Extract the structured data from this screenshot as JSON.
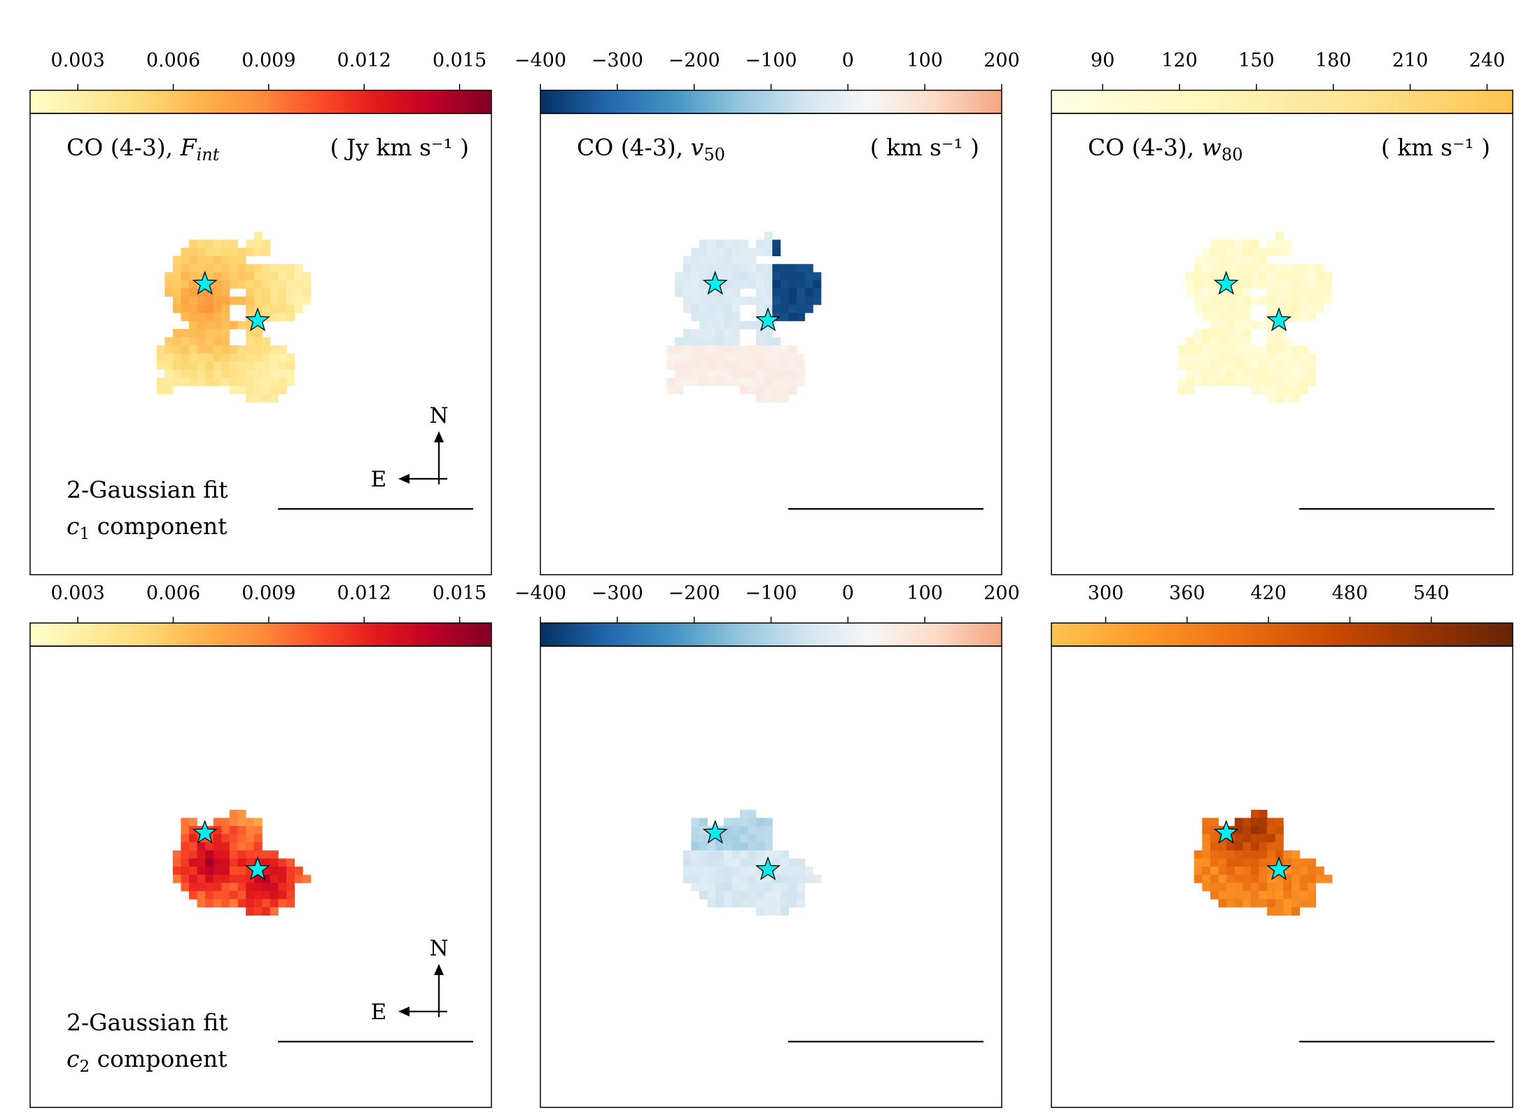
{
  "colors": {
    "YlOrRd": [
      "#ffffcc",
      "#ffeda0",
      "#fed976",
      "#feb24c",
      "#fd8d3c",
      "#fc4e2a",
      "#e31a1c",
      "#bd0026",
      "#800026"
    ],
    "RdBu_r_lower": [
      "#053061",
      "#2166ac",
      "#4393c3",
      "#92c5de",
      "#d1e5f0",
      "#f7f7f7",
      "#fddbc7",
      "#f4a582"
    ],
    "YlOrBr_light": [
      "#ffffe5",
      "#fff7bc",
      "#fee391",
      "#fec44f"
    ],
    "YlOrBr_dark": [
      "#fec44f",
      "#fe9929",
      "#ec7014",
      "#cc4c02",
      "#993404",
      "#662506"
    ],
    "star_fill": "#00f0f0",
    "star_edge": "#000000"
  },
  "chart_data": [
    {
      "id": "c1-flux",
      "type": "heatmap",
      "title": "CO (4-3), F_int",
      "title_main": "CO (4-3), ",
      "title_sym": "F",
      "title_sub": "int",
      "unit": "( Jy km s⁻¹ )",
      "colorbar": {
        "cmap": "YlOrRd",
        "range": [
          0.0015,
          0.016
        ],
        "ticks": [
          0.003,
          0.006,
          0.009,
          0.012,
          0.015
        ],
        "tick_labels": [
          "0.003",
          "0.006",
          "0.009",
          "0.012",
          "0.015"
        ]
      },
      "annotation": [
        "2-Gaussian fit",
        "c1 component"
      ],
      "compass": {
        "north": "N",
        "east": "E"
      },
      "star_markers": 2
    },
    {
      "id": "c1-v50",
      "type": "heatmap",
      "title": "CO (4-3), v50",
      "title_main": "CO (4-3), ",
      "title_sym": "v",
      "title_sub": "50",
      "unit": "( km s⁻¹ )",
      "colorbar": {
        "cmap": "RdBu_r_lower",
        "range": [
          -400,
          200
        ],
        "ticks": [
          -400,
          -300,
          -200,
          -100,
          0,
          100,
          200
        ],
        "tick_labels": [
          "−400",
          "−300",
          "−200",
          "−100",
          "0",
          "100",
          "200"
        ]
      },
      "star_markers": 2
    },
    {
      "id": "c1-w80",
      "type": "heatmap",
      "title": "CO (4-3), w80",
      "title_main": "CO (4-3), ",
      "title_sym": "w",
      "title_sub": "80",
      "unit": "( km s⁻¹ )",
      "colorbar": {
        "cmap": "YlOrBr_light",
        "range": [
          70,
          250
        ],
        "ticks": [
          90,
          120,
          150,
          180,
          210,
          240
        ],
        "tick_labels": [
          "90",
          "120",
          "150",
          "180",
          "210",
          "240"
        ]
      },
      "star_markers": 2
    },
    {
      "id": "c2-flux",
      "type": "heatmap",
      "colorbar": {
        "cmap": "YlOrRd",
        "range": [
          0.0015,
          0.016
        ],
        "ticks": [
          0.003,
          0.006,
          0.009,
          0.012,
          0.015
        ],
        "tick_labels": [
          "0.003",
          "0.006",
          "0.009",
          "0.012",
          "0.015"
        ]
      },
      "annotation": [
        "2-Gaussian fit",
        "c2 component"
      ],
      "compass": {
        "north": "N",
        "east": "E"
      },
      "star_markers": 2
    },
    {
      "id": "c2-v50",
      "type": "heatmap",
      "colorbar": {
        "cmap": "RdBu_r_lower",
        "range": [
          -400,
          200
        ],
        "ticks": [
          -400,
          -300,
          -200,
          -100,
          0,
          100,
          200
        ],
        "tick_labels": [
          "−400",
          "−300",
          "−200",
          "−100",
          "0",
          "100",
          "200"
        ]
      },
      "star_markers": 2
    },
    {
      "id": "c2-w80",
      "type": "heatmap",
      "colorbar": {
        "cmap": "YlOrBr_dark",
        "range": [
          260,
          600
        ],
        "ticks": [
          300,
          360,
          420,
          480,
          540
        ],
        "tick_labels": [
          "300",
          "360",
          "420",
          "480",
          "540"
        ]
      },
      "star_markers": 2
    }
  ]
}
